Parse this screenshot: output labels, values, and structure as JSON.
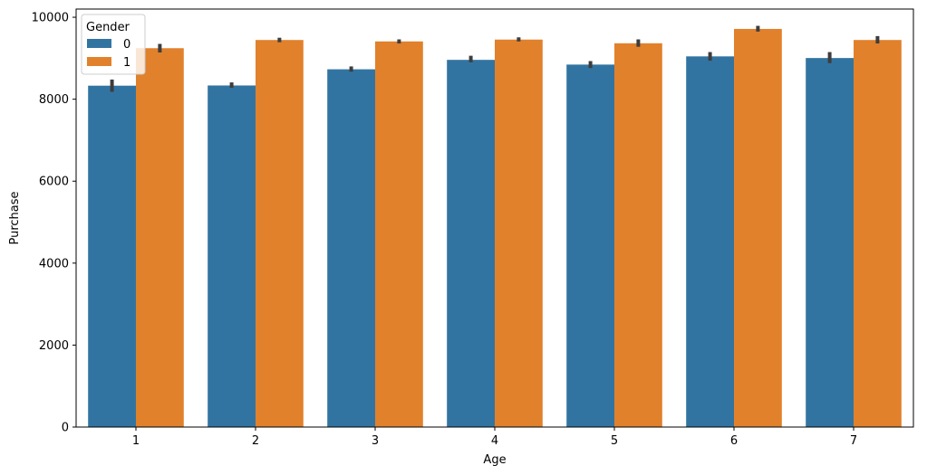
{
  "chart_data": {
    "type": "bar",
    "xlabel": "Age",
    "ylabel": "Purchase",
    "ylim": [
      0,
      10200
    ],
    "yticks": [
      0,
      2000,
      4000,
      6000,
      8000,
      10000
    ],
    "categories": [
      "1",
      "2",
      "3",
      "4",
      "5",
      "6",
      "7"
    ],
    "legend": {
      "title": "Gender",
      "placement": "top-left"
    },
    "grid": false,
    "series": [
      {
        "name": "0",
        "color": "#3274a1",
        "values": [
          8330,
          8335,
          8730,
          8960,
          8845,
          9045,
          9005
        ],
        "err_low": [
          8180,
          8280,
          8670,
          8900,
          8760,
          8940,
          8880
        ],
        "err_high": [
          8480,
          8410,
          8800,
          9060,
          8930,
          9150,
          9150
        ]
      },
      {
        "name": "1",
        "color": "#e1812c",
        "values": [
          9245,
          9445,
          9410,
          9455,
          9365,
          9715,
          9445
        ],
        "err_low": [
          9140,
          9390,
          9360,
          9410,
          9280,
          9650,
          9360
        ],
        "err_high": [
          9350,
          9500,
          9460,
          9510,
          9460,
          9790,
          9540
        ]
      }
    ],
    "error_bar_color": "#3d3d3d"
  }
}
